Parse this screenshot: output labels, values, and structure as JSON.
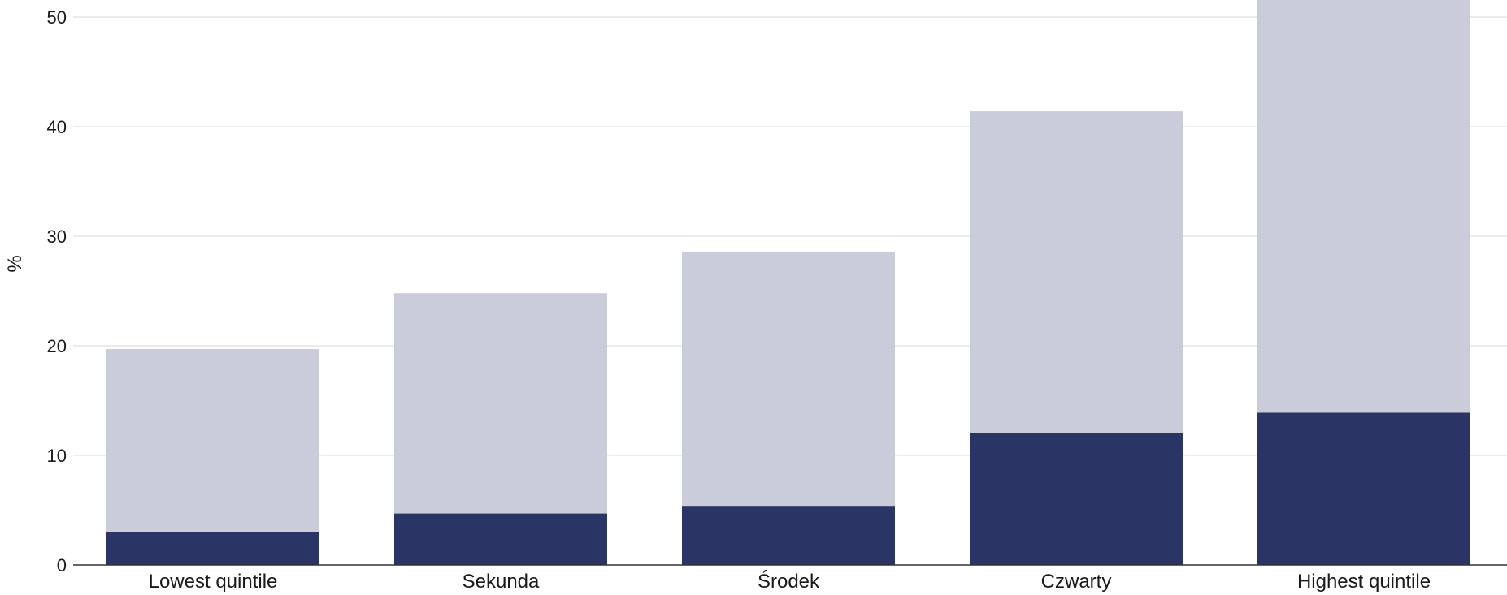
{
  "chart_data": {
    "type": "bar",
    "stacked": true,
    "categories": [
      "Lowest quintile",
      "Sekunda",
      "Środek",
      "Czwarty",
      "Highest quintile"
    ],
    "series": [
      {
        "values": [
          3.0,
          4.7,
          5.4,
          12.0,
          13.9
        ],
        "color": "#2b3565"
      },
      {
        "values": [
          16.7,
          20.1,
          23.2,
          29.4,
          38.2
        ],
        "color": "#cacdd9"
      }
    ],
    "totals": [
      19.7,
      24.8,
      28.6,
      41.4,
      52.1
    ],
    "ylabel": "%",
    "xlabel": "",
    "ylim": [
      0,
      52
    ],
    "yticks": [
      0,
      10,
      20,
      30,
      40,
      50
    ],
    "grid": true,
    "legend": "none"
  }
}
